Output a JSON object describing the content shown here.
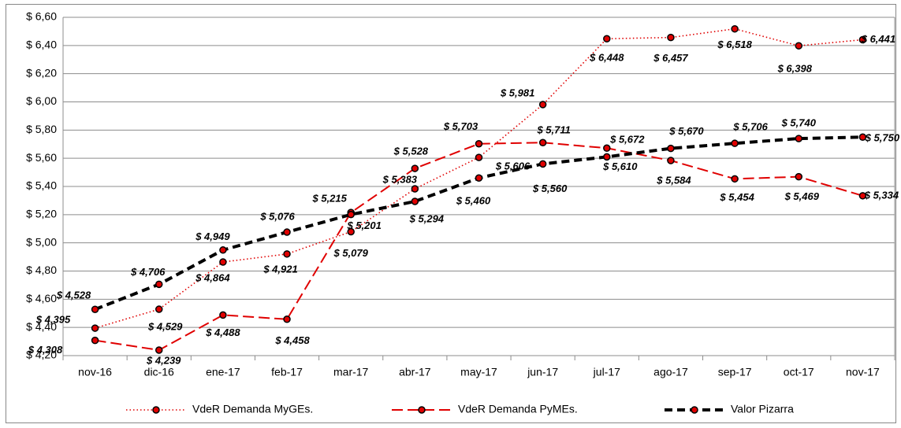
{
  "chart_data": {
    "type": "line",
    "categories": [
      "nov-16",
      "dic-16",
      "ene-17",
      "feb-17",
      "mar-17",
      "abr-17",
      "may-17",
      "jun-17",
      "jul-17",
      "ago-17",
      "sep-17",
      "oct-17",
      "nov-17"
    ],
    "series": [
      {
        "name": "VdeR Demanda MyGEs.",
        "color": "#e00000",
        "label_color": "#8b1538",
        "line_style": "dotted",
        "values": [
          4.395,
          4.529,
          4.864,
          4.921,
          5.079,
          5.383,
          5.606,
          5.981,
          6.448,
          6.457,
          6.518,
          6.398,
          6.441
        ],
        "value_labels": [
          "$ 4,395",
          "$ 4,529",
          "$ 4,864",
          "$ 4,921",
          "$ 5,079",
          "$ 5,383",
          "$ 5,606",
          "$ 5,981",
          "$ 6,448",
          "$ 6,457",
          "$ 6,518",
          "$ 6,398",
          "$ 6,441"
        ]
      },
      {
        "name": "VdeR Demanda PyMEs.",
        "color": "#e00000",
        "label_color": "#e00000",
        "line_style": "dashed",
        "values": [
          4.308,
          4.239,
          4.488,
          4.458,
          5.215,
          5.528,
          5.703,
          5.711,
          5.672,
          5.584,
          5.454,
          5.469,
          5.334
        ],
        "value_labels": [
          "$ 4,308",
          "$ 4,239",
          "$ 4,488",
          "$ 4,458",
          "$ 5,215",
          "$ 5,528",
          "$ 5,703",
          "$ 5,711",
          "$ 5,672",
          "$ 5,584",
          "$ 5,454",
          "$ 5,469",
          "$ 5,334"
        ]
      },
      {
        "name": "Valor Pizarra",
        "color": "#000000",
        "label_color": "#000000",
        "line_style": "bold-dashed",
        "values": [
          4.528,
          4.706,
          4.949,
          5.076,
          5.201,
          5.294,
          5.46,
          5.56,
          5.61,
          5.67,
          5.706,
          5.74,
          5.75
        ],
        "value_labels": [
          "$ 4,528",
          "$ 4,706",
          "$ 4,949",
          "$ 5,076",
          "$ 5,201",
          "$ 5,294",
          "$ 5,460",
          "$ 5,560",
          "$ 5,610",
          "$ 5,670",
          "$ 5,706",
          "$ 5,740",
          "$ 5,750"
        ]
      }
    ],
    "ylim": [
      4.2,
      6.6
    ],
    "yticks": [
      {
        "value": 4.2,
        "label": "$ 4,20"
      },
      {
        "value": 4.4,
        "label": "$ 4,40"
      },
      {
        "value": 4.6,
        "label": "$ 4,60"
      },
      {
        "value": 4.8,
        "label": "$ 4,80"
      },
      {
        "value": 5.0,
        "label": "$ 5,00"
      },
      {
        "value": 5.2,
        "label": "$ 5,20"
      },
      {
        "value": 5.4,
        "label": "$ 5,40"
      },
      {
        "value": 5.6,
        "label": "$ 5,60"
      },
      {
        "value": 5.8,
        "label": "$ 5,80"
      },
      {
        "value": 6.0,
        "label": "$ 6,00"
      },
      {
        "value": 6.2,
        "label": "$ 6,20"
      },
      {
        "value": 6.4,
        "label": "$ 6,40"
      },
      {
        "value": 6.6,
        "label": "$ 6,60"
      }
    ],
    "grid": true,
    "legend": "bottom"
  }
}
